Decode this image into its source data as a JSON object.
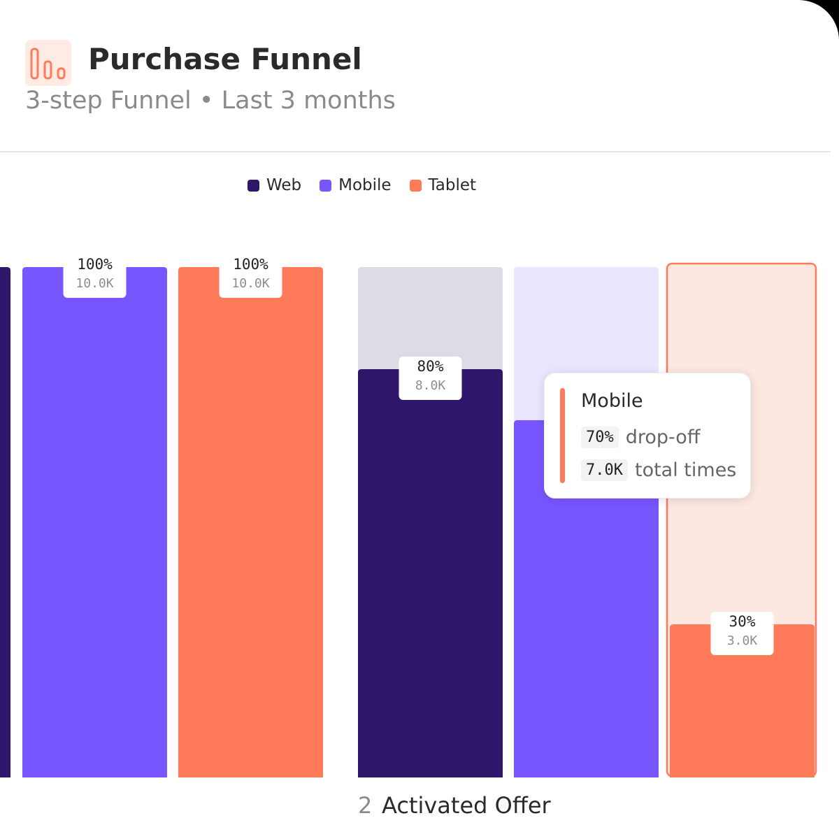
{
  "header": {
    "title": "Purchase Funnel",
    "subtitle": "3-step Funnel • Last 3 months",
    "icon": "bar-chart-icon",
    "icon_color": "#ff7a59"
  },
  "legend": [
    {
      "label": "Web",
      "color": "#2e166b"
    },
    {
      "label": "Mobile",
      "color": "#7856ff"
    },
    {
      "label": "Tablet",
      "color": "#ff7a59"
    }
  ],
  "chart_data": {
    "type": "bar",
    "title": "Purchase Funnel",
    "subtitle": "3-step Funnel • Last 3 months",
    "series_names": [
      "Web",
      "Mobile",
      "Tablet"
    ],
    "colors": {
      "Web": "#2e166b",
      "Mobile": "#7856ff",
      "Tablet": "#ff7a59",
      "Web_bg": "#dddbe6",
      "Mobile_bg": "#ebe6ff",
      "Tablet_bg": "#fde8e1"
    },
    "ylim": [
      0,
      100
    ],
    "steps": [
      {
        "number": "",
        "name": "",
        "bars": [
          {
            "series": "Web",
            "percent": 100,
            "pct_label": "",
            "count_label": ""
          },
          {
            "series": "Mobile",
            "percent": 100,
            "pct_label": "100%",
            "count_label": "10.0K"
          },
          {
            "series": "Tablet",
            "percent": 100,
            "pct_label": "100%",
            "count_label": "10.0K"
          }
        ]
      },
      {
        "number": "2",
        "name": "Activated Offer",
        "bars": [
          {
            "series": "Web",
            "percent": 80,
            "pct_label": "80%",
            "count_label": "8.0K"
          },
          {
            "series": "Mobile",
            "percent": 70,
            "pct_label": "",
            "count_label": ""
          },
          {
            "series": "Tablet",
            "percent": 30,
            "pct_label": "30%",
            "count_label": "3.0K",
            "selected": true
          }
        ]
      }
    ]
  },
  "tooltip": {
    "title": "Mobile",
    "percent": "70%",
    "percent_text": "drop-off",
    "count": "7.0K",
    "count_text": "total times",
    "accent_color": "#ff7a59"
  }
}
